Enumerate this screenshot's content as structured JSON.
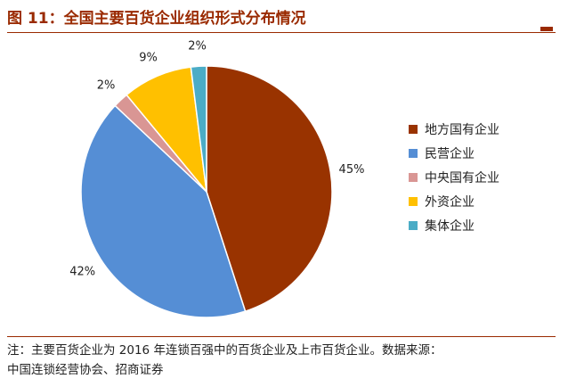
{
  "title": "图 11：全国主要百货企业组织形式分布情况",
  "note": {
    "line1": "注：主要百货企业为 2016 年连锁百强中的百货企业及上市百货企业。数据来源：",
    "line2": "中国连锁经营协会、招商证券"
  },
  "chart_data": {
    "type": "pie",
    "title": "",
    "legend_position": "right",
    "start_angle_deg": 0,
    "direction": "clockwise",
    "slices": [
      {
        "label": "地方国有企业",
        "value": 45,
        "display": "45%",
        "color": "#993300"
      },
      {
        "label": "民营企业",
        "value": 42,
        "display": "42%",
        "color": "#558ed5"
      },
      {
        "label": "中央国有企业",
        "value": 2,
        "display": "2%",
        "color": "#d99694"
      },
      {
        "label": "外资企业",
        "value": 9,
        "display": "9%",
        "color": "#ffc000"
      },
      {
        "label": "集体企业",
        "value": 2,
        "display": "2%",
        "color": "#4bacc6"
      }
    ]
  }
}
